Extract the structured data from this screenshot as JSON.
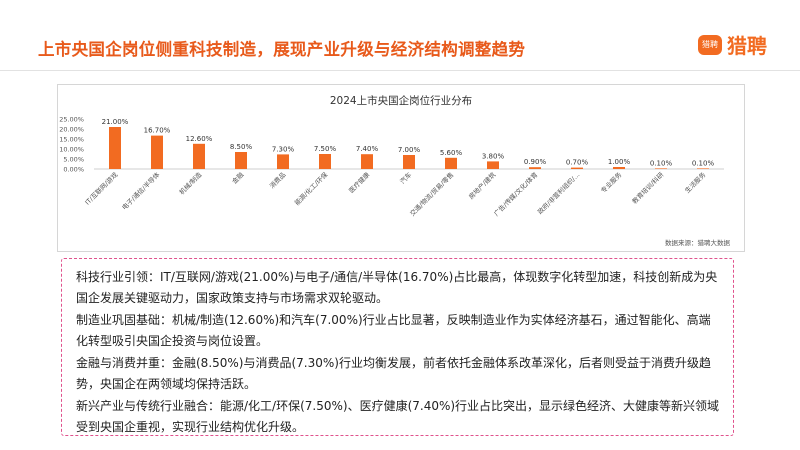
{
  "header": {
    "title": "上市央国企岗位侧重科技制造，展现产业升级与经济结构调整趋势",
    "logo_badge": "猎聘",
    "logo_text": "猎聘"
  },
  "chart_data": {
    "type": "bar",
    "title": "2024上市央国企岗位行业分布",
    "source": "数据来源：猎聘大数据",
    "categories": [
      "IT/互联网/游戏",
      "电子/通信/半导体",
      "机械/制造",
      "金融",
      "消费品",
      "能源/化工/环保",
      "医疗健康",
      "汽车",
      "交通/物流/贸易/零售",
      "房地产/建筑",
      "广告/传媒/文化/体育",
      "政府/非营利组织/...",
      "专业服务",
      "教育培训/科研",
      "生活服务"
    ],
    "values": [
      21.0,
      16.7,
      12.6,
      8.5,
      7.3,
      7.5,
      7.4,
      7.0,
      5.6,
      3.8,
      0.9,
      0.7,
      1.0,
      0.1,
      0.1
    ],
    "value_labels": [
      "21.00%",
      "16.70%",
      "12.60%",
      "8.50%",
      "7.30%",
      "7.50%",
      "7.40%",
      "7.00%",
      "5.60%",
      "3.80%",
      "0.90%",
      "0.70%",
      "1.00%",
      "0.10%",
      "0.10%"
    ],
    "yticks": [
      "0.00%",
      "5.00%",
      "10.00%",
      "15.00%",
      "20.00%",
      "25.00%"
    ],
    "ylim": [
      0,
      25
    ],
    "bar_color": "#f26b21",
    "grid": false,
    "legend": "none"
  },
  "insights": [
    "科技行业引领：IT/互联网/游戏(21.00%)与电子/通信/半导体(16.70%)占比最高，体现数字化转型加速，科技创新成为央国企发展关键驱动力，国家政策支持与市场需求双轮驱动。",
    "制造业巩固基础：机械/制造(12.60%)和汽车(7.00%)行业占比显著，反映制造业作为实体经济基石，通过智能化、高端化转型吸引央国企投资与岗位设置。",
    "金融与消费并重：金融(8.50%)与消费品(7.30%)行业均衡发展，前者依托金融体系改革深化，后者则受益于消费升级趋势，央国企在两领域均保持活跃。",
    "新兴产业与传统行业融合：能源/化工/环保(7.50%)、医疗健康(7.40%)行业占比突出，显示绿色经济、大健康等新兴领域受到央国企重视，实现行业结构优化升级。"
  ]
}
